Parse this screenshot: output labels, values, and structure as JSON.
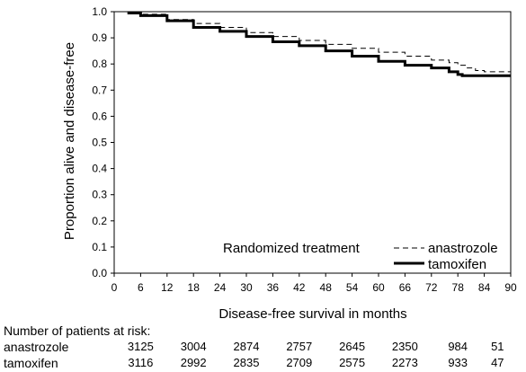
{
  "chart_data": {
    "type": "line",
    "xlabel": "Disease-free survival in months",
    "ylabel": "Proportion alive and disease-free",
    "xlim": [
      0,
      90
    ],
    "ylim": [
      0.0,
      1.0
    ],
    "x_ticks": [
      "0",
      "6",
      "12",
      "18",
      "24",
      "30",
      "36",
      "42",
      "48",
      "54",
      "60",
      "66",
      "72",
      "78",
      "84",
      "90"
    ],
    "y_ticks": [
      "0.0",
      "0.1",
      "0.2",
      "0.3",
      "0.4",
      "0.5",
      "0.6",
      "0.7",
      "0.8",
      "0.9",
      "1.0"
    ],
    "grid": false,
    "legend": {
      "title": "Randomized treatment",
      "placement": "bottom-right"
    },
    "series": [
      {
        "name": "anastrozole",
        "style": "dashed",
        "x": [
          3,
          6,
          12,
          18,
          24,
          30,
          36,
          42,
          48,
          54,
          60,
          66,
          72,
          76,
          78,
          80,
          82,
          84,
          87,
          90
        ],
        "y": [
          1.0,
          0.99,
          0.97,
          0.955,
          0.94,
          0.92,
          0.905,
          0.89,
          0.875,
          0.86,
          0.845,
          0.83,
          0.815,
          0.805,
          0.795,
          0.785,
          0.775,
          0.77,
          0.77,
          0.77
        ]
      },
      {
        "name": "tamoxifen",
        "style": "solid",
        "x": [
          3,
          6,
          12,
          18,
          24,
          30,
          36,
          42,
          48,
          54,
          60,
          66,
          72,
          76,
          78,
          79,
          84,
          87,
          90
        ],
        "y": [
          0.995,
          0.985,
          0.965,
          0.94,
          0.925,
          0.905,
          0.885,
          0.87,
          0.85,
          0.83,
          0.81,
          0.795,
          0.785,
          0.77,
          0.76,
          0.755,
          0.755,
          0.755,
          0.755
        ]
      }
    ]
  },
  "risk_table": {
    "title": "Number of patients at risk:",
    "months": [
      6,
      18,
      30,
      42,
      54,
      66,
      78,
      87
    ],
    "rows": [
      {
        "label": "anastrozole",
        "values": [
          "3125",
          "3004",
          "2874",
          "2757",
          "2645",
          "2350",
          "984",
          "51"
        ]
      },
      {
        "label": "tamoxifen",
        "values": [
          "3116",
          "2992",
          "2835",
          "2709",
          "2575",
          "2273",
          "933",
          "47"
        ]
      }
    ]
  }
}
